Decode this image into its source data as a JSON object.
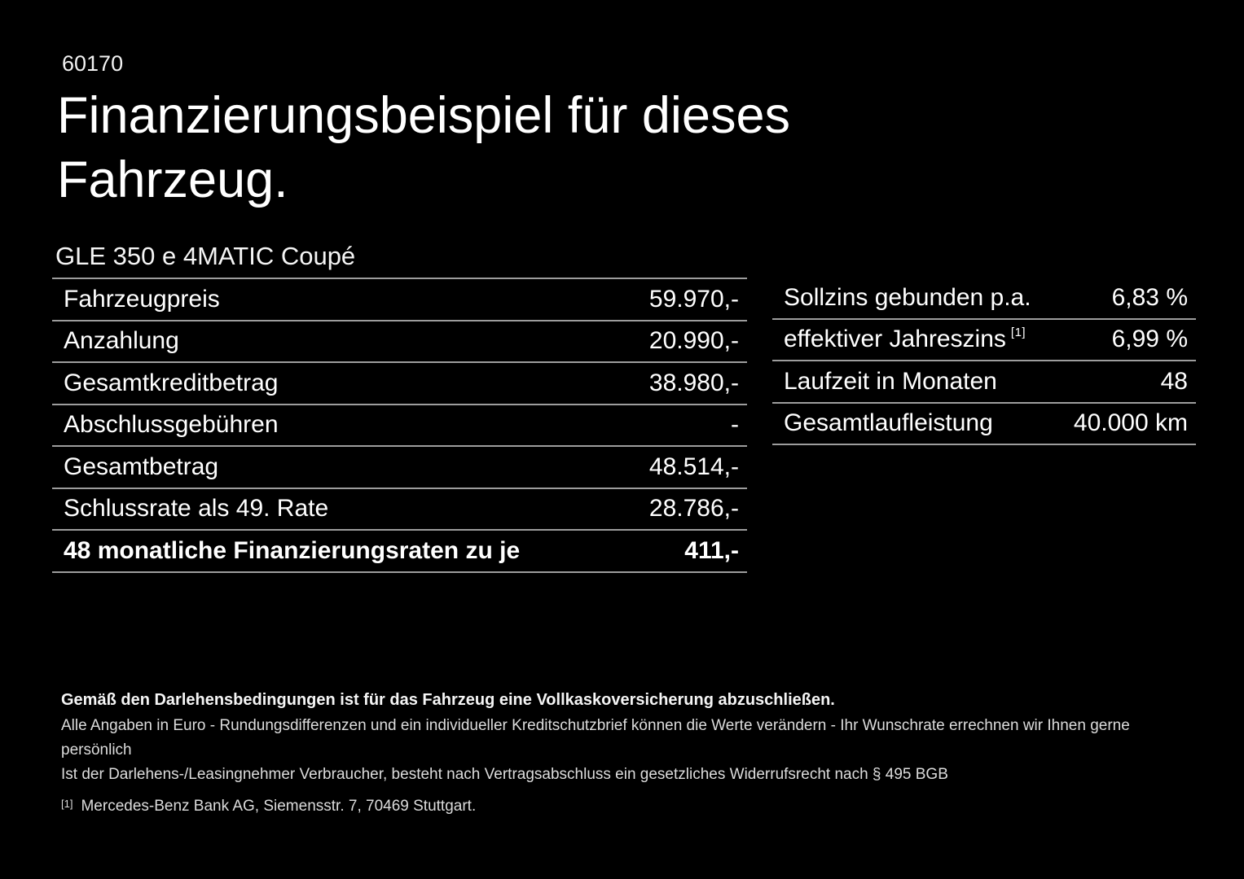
{
  "page": {
    "doc_number": "60170",
    "title": "Finanzierungsbeispiel für dieses Fahrzeug.",
    "vehicle_model": "GLE 350 e 4MATIC Coupé"
  },
  "finance_table": {
    "rows": [
      {
        "label": "Fahrzeugpreis",
        "value": "59.970,-"
      },
      {
        "label": "Anzahlung",
        "value": "20.990,-"
      },
      {
        "label": "Gesamtkreditbetrag",
        "value": "38.980,-"
      },
      {
        "label": "Abschlussgebühren",
        "value": "-"
      },
      {
        "label": "Gesamtbetrag",
        "value": "48.514,-"
      },
      {
        "label": "Schlussrate als 49. Rate",
        "value": "28.786,-"
      },
      {
        "label": "48 monatliche Finanzierungsraten zu je",
        "value": "411,-"
      }
    ]
  },
  "conditions_table": {
    "rows": [
      {
        "label": "Sollzins gebunden p.a.",
        "value": "6,83 %"
      },
      {
        "label": "effektiver Jahreszins",
        "footnote_marker": "[1]",
        "value": "6,99 %"
      },
      {
        "label": "Laufzeit in Monaten",
        "value": "48"
      },
      {
        "label": "Gesamtlaufleistung",
        "value": "40.000 km"
      }
    ]
  },
  "footer": {
    "insurance_note": "Gemäß den Darlehensbedingungen ist für das Fahrzeug eine Vollkaskoversicherung abzuschließen.",
    "disclaimer_line1": "Alle Angaben in Euro - Rundungsdifferenzen und ein individueller Kreditschutzbrief können die Werte verändern - Ihr Wunschrate errechnen wir Ihnen gerne persönlich",
    "disclaimer_line2": "Ist der Darlehens-/Leasingnehmer Verbraucher, besteht nach Vertragsabschluss ein gesetzliches Widerrufsrecht nach § 495 BGB",
    "footnote_marker": "[1]",
    "footnote_text": "Mercedes-Benz Bank AG, Siemensstr. 7, 70469 Stuttgart."
  },
  "colors": {
    "background": "#000000",
    "text": "#ffffff",
    "divider": "#9d9d9d"
  }
}
